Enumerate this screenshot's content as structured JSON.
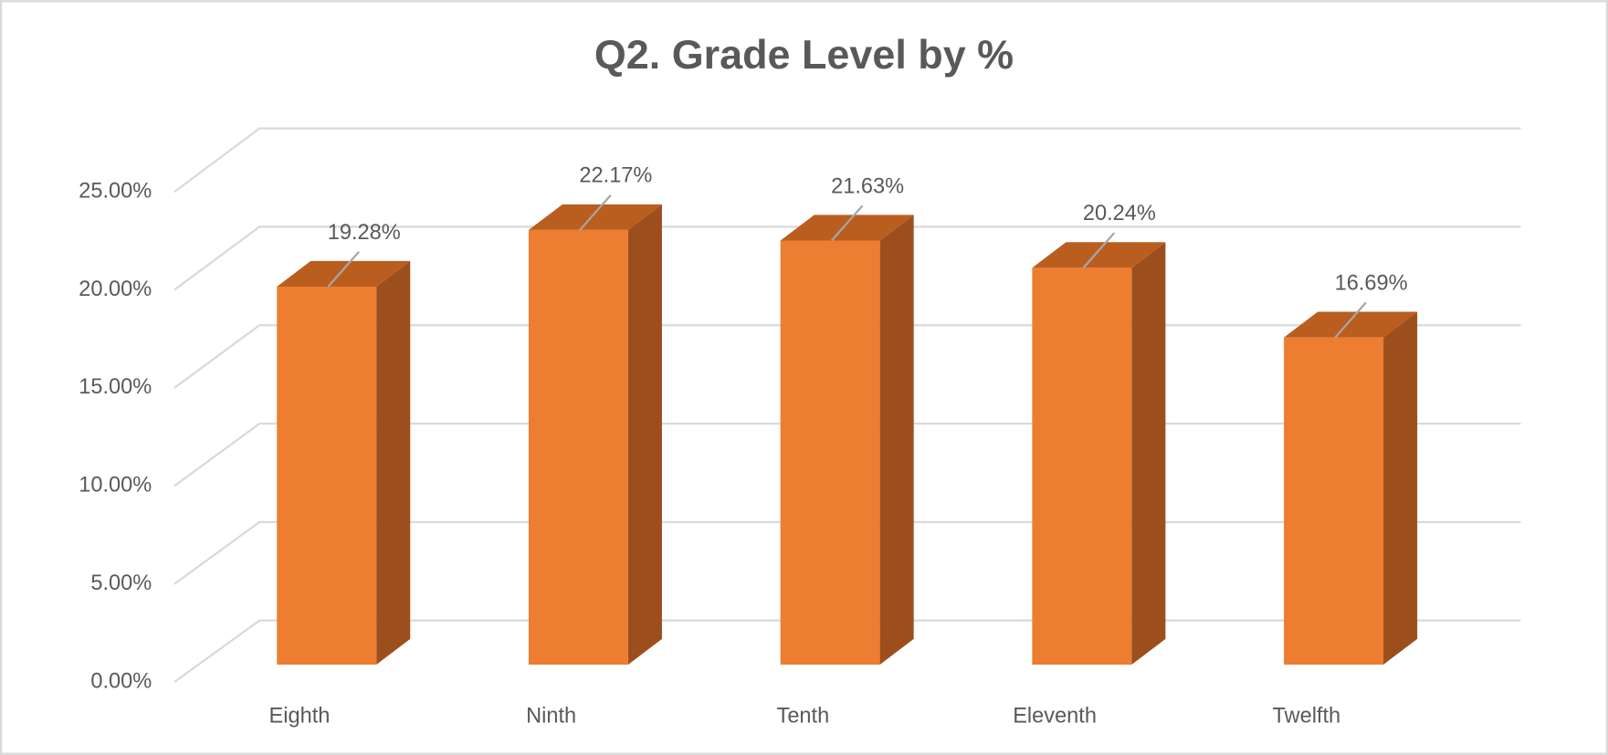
{
  "chart_data": {
    "type": "bar3d",
    "title": "Q2. Grade Level by %",
    "categories": [
      "Eighth",
      "Ninth",
      "Tenth",
      "Eleventh",
      "Twelfth"
    ],
    "values": [
      19.28,
      22.17,
      21.63,
      20.24,
      16.69
    ],
    "value_labels": [
      "19.28%",
      "22.17%",
      "21.63%",
      "20.24%",
      "16.69%"
    ],
    "color": "#ed7d31",
    "ylim": [
      0,
      25
    ],
    "yticks": [
      {
        "value": 0,
        "label": "0.00%"
      },
      {
        "value": 5,
        "label": "5.00%"
      },
      {
        "value": 10,
        "label": "10.00%"
      },
      {
        "value": 15,
        "label": "15.00%"
      },
      {
        "value": 20,
        "label": "20.00%"
      },
      {
        "value": 25,
        "label": "25.00%"
      }
    ],
    "grid": true
  }
}
